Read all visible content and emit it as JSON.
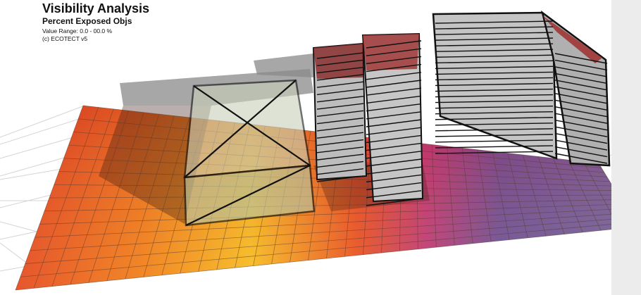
{
  "header": {
    "title": "Visibility Analysis",
    "subtitle": "Percent Exposed Objs",
    "range": "Value Range: 0.0 - 00.0 %",
    "credit": "(c) ECOTECT v5"
  }
}
